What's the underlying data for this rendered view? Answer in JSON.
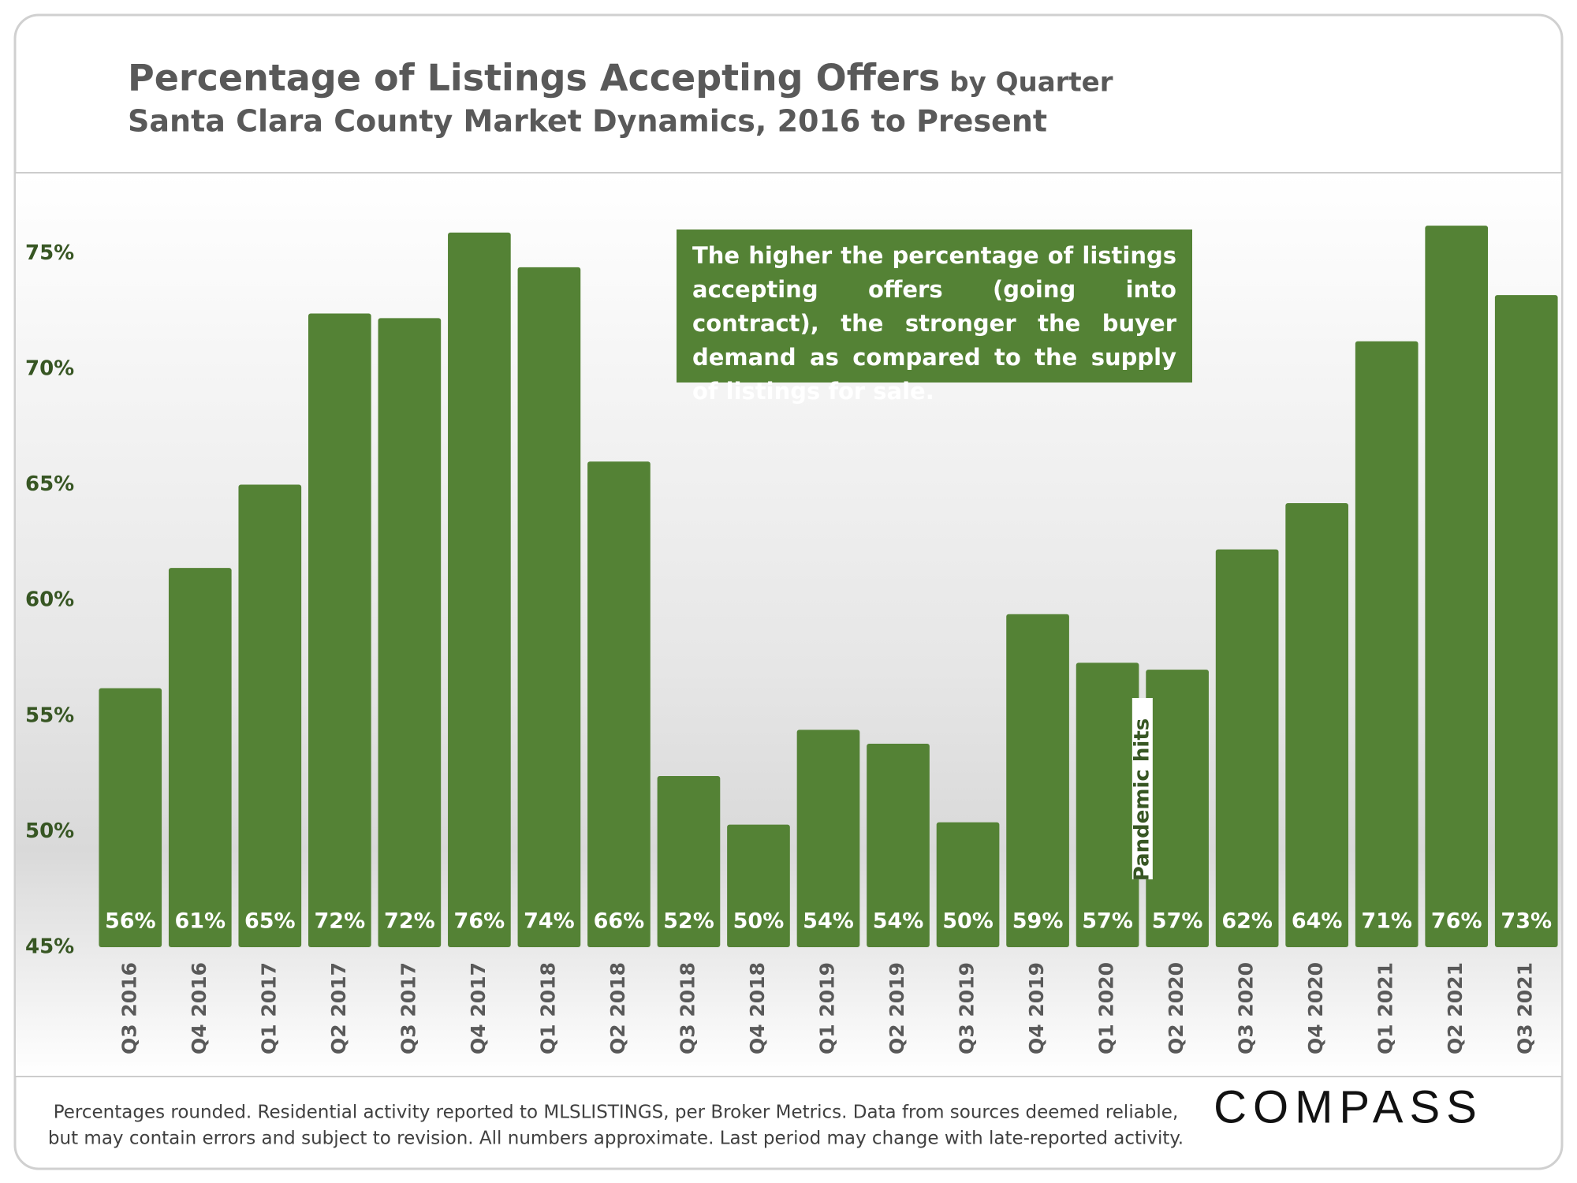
{
  "chart_data": {
    "type": "bar",
    "title": "Percentage of Listings Accepting Offers",
    "title_suffix": "by Quarter",
    "subtitle": "Santa Clara County Market Dynamics, 2016 to Present",
    "annotation": "The higher the percentage of listings accepting offers (going into contract), the stronger the buyer demand as compared to the supply of listings for sale.",
    "event_label": "Pandemic hits",
    "footnote": [
      "Percentages rounded. Residential activity reported to MLSLISTINGS, per Broker Metrics. Data from sources deemed reliable,",
      "but may contain errors and subject to revision. All numbers approximate. Last period may change with late-reported activity."
    ],
    "logo": "COMPASS",
    "categories": [
      "Q3 2016",
      "Q4 2016",
      "Q1 2017",
      "Q2 2017",
      "Q3 2017",
      "Q4 2017",
      "Q1 2018",
      "Q2 2018",
      "Q3 2018",
      "Q4 2018",
      "Q1 2019",
      "Q2 2019",
      "Q3 2019",
      "Q4 2019",
      "Q1 2020",
      "Q2 2020",
      "Q3 2020",
      "Q4 2020",
      "Q1 2021",
      "Q2 2021",
      "Q3 2021"
    ],
    "values": [
      56.2,
      61.4,
      65.0,
      72.4,
      72.2,
      75.9,
      74.4,
      66.0,
      52.4,
      50.3,
      54.4,
      53.8,
      50.4,
      59.4,
      57.3,
      57.0,
      62.2,
      64.2,
      71.2,
      76.2,
      73.2
    ],
    "value_labels": [
      "56%",
      "61%",
      "65%",
      "72%",
      "72%",
      "76%",
      "74%",
      "66%",
      "52%",
      "50%",
      "54%",
      "54%",
      "50%",
      "59%",
      "57%",
      "57%",
      "62%",
      "64%",
      "71%",
      "76%",
      "73%"
    ],
    "color": "#548235",
    "ylim": [
      45,
      77.5
    ],
    "yticks": [
      {
        "value": 45,
        "label": "45%"
      },
      {
        "value": 50,
        "label": "50%"
      },
      {
        "value": 55,
        "label": "55%"
      },
      {
        "value": 60,
        "label": "60%"
      },
      {
        "value": 65,
        "label": "65%"
      },
      {
        "value": 70,
        "label": "70%"
      },
      {
        "value": 75,
        "label": "75%"
      }
    ],
    "grid": false
  }
}
